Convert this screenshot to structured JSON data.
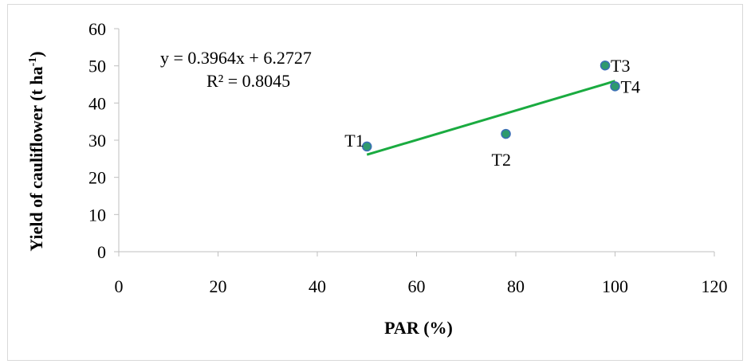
{
  "chart_data": {
    "type": "scatter",
    "xlabel": "PAR (%)",
    "ylabel_main": "Yield of cauliflower (t ha",
    "ylabel_sup": "-1",
    "ylabel_close": ")",
    "xlim": [
      0,
      120
    ],
    "ylim": [
      0,
      60
    ],
    "xticks": [
      "0",
      "20",
      "40",
      "60",
      "80",
      "100",
      "120"
    ],
    "yticks": [
      "0",
      "10",
      "20",
      "30",
      "40",
      "50",
      "60"
    ],
    "grid": false,
    "points": [
      {
        "label": "T1",
        "x": 50,
        "y": 28.3
      },
      {
        "label": "T2",
        "x": 78,
        "y": 31.7
      },
      {
        "label": "T3",
        "x": 98,
        "y": 50.1
      },
      {
        "label": "T4",
        "x": 100,
        "y": 44.5
      }
    ],
    "trendline": {
      "slope": 0.3964,
      "intercept": 6.2727,
      "x_range": [
        50,
        100
      ],
      "equation": "y = 0.3964x + 6.2727",
      "r_squared": "R² = 0.8045",
      "color": "#1aab40"
    },
    "marker_color": "#2e9a6e",
    "marker_edge": "#3b6fb6"
  }
}
